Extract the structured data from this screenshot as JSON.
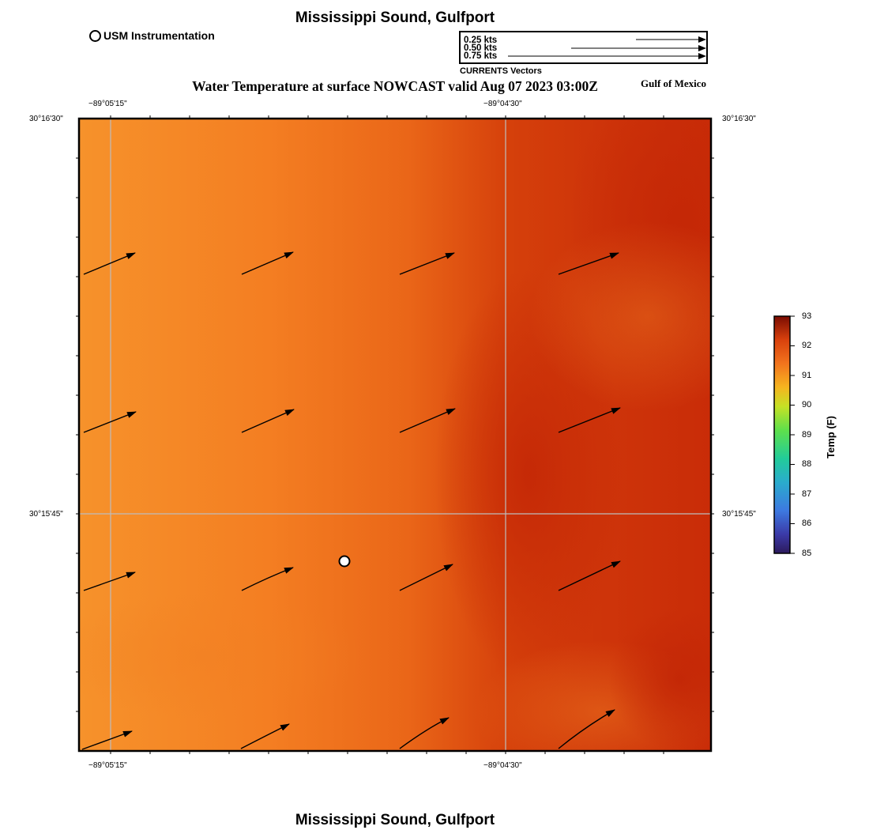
{
  "header": {
    "title": "Mississippi Sound, Gulfport",
    "subtitle": "Water Temperature at surface NOWCAST valid Aug 07 2023 03:00Z",
    "region": "Gulf of Mexico"
  },
  "footer": {
    "title": "Mississippi Sound, Gulfport"
  },
  "legend": {
    "station_label": "USM Instrumentation",
    "scale_labels": [
      "0.25 kts",
      "0.50 kts",
      "0.75 kts"
    ],
    "vectors_caption": "CURRENTS Vectors"
  },
  "axes": {
    "lon_ticks": [
      "−89°05'15\"",
      "−89°04'30\""
    ],
    "lat_ticks": [
      "30°16'30\"",
      "30°15'45\""
    ]
  },
  "colorbar": {
    "title": "Temp (F)",
    "min": 85,
    "max": 93,
    "ticks": [
      "93",
      "92",
      "91",
      "90",
      "89",
      "88",
      "87",
      "86",
      "85"
    ]
  },
  "colors": {
    "warm_west": "#f5922a",
    "hot_east": "#c92d08",
    "grid": "#bbbbbb"
  },
  "station": {
    "name": "USM Instrumentation"
  }
}
